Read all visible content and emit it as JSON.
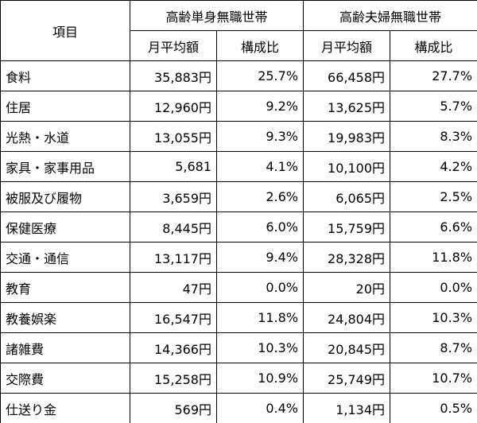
{
  "table": {
    "header": {
      "item": "項目",
      "groups": [
        "高齢単身無職世帯",
        "高齢夫婦無職世帯"
      ],
      "subheaders": [
        "月平均額",
        "構成比",
        "月平均額",
        "構成比"
      ]
    },
    "rows": [
      [
        "食料",
        "35,883円",
        "25.7%",
        "66,458円",
        "27.7%"
      ],
      [
        "住居",
        "12,960円",
        "9.2%",
        "13,625円",
        "5.7%"
      ],
      [
        "光熱・水道",
        "13,055円",
        "9.3%",
        "19,983円",
        "8.3%"
      ],
      [
        "家具・家事用品",
        "5,681",
        "4.1%",
        "10,100円",
        "4.2%"
      ],
      [
        "被服及び履物",
        "3,659円",
        "2.6%",
        "6,065円",
        "2.5%"
      ],
      [
        "保健医療",
        "8,445円",
        "6.0%",
        "15,759円",
        "6.6%"
      ],
      [
        "交通・通信",
        "13,117円",
        "9.4%",
        "28,328円",
        "11.8%"
      ],
      [
        "教育",
        "47円",
        "0.0%",
        "20円",
        "0.0%"
      ],
      [
        "教養娯楽",
        "16,547円",
        "11.8%",
        "24,804円",
        "10.3%"
      ],
      [
        "諸雑費",
        "14,366円",
        "10.3%",
        "20,845円",
        "8.7%"
      ],
      [
        "交際費",
        "15,258円",
        "10.9%",
        "25,749円",
        "10.7%"
      ],
      [
        "仕送り金",
        "569円",
        "0.4%",
        "1,134円",
        "0.5%"
      ]
    ]
  }
}
